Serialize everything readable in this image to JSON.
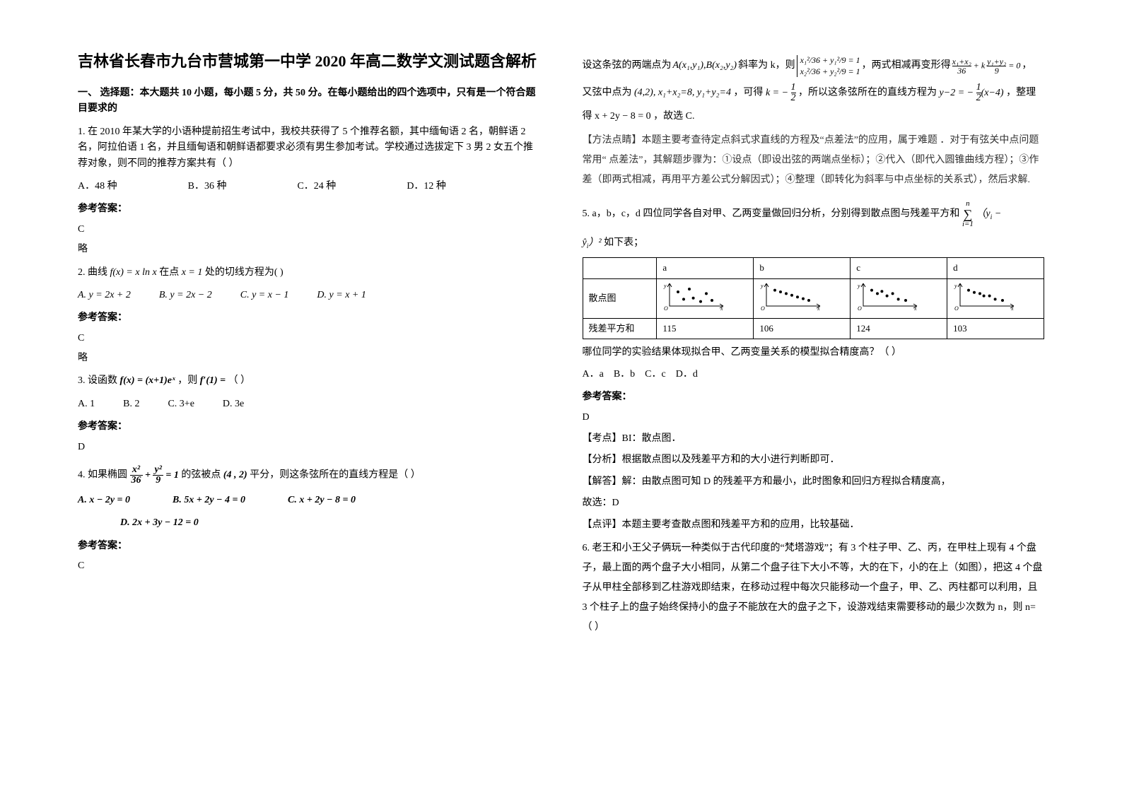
{
  "title": "吉林省长春市九台市营城第一中学 2020 年高二数学文测试题含解析",
  "section_header": "一、 选择题：本大题共 10 小题，每小题 5 分，共 50 分。在每小题给出的四个选项中，只有是一个符合题目要求的",
  "q1": {
    "text": "1. 在 2010 年某大学的小语种提前招生考试中，我校共获得了 5 个推荐名额，其中缅甸语 2 名，朝鲜语 2 名，阿拉伯语 1 名，并且缅甸语和朝鲜语都要求必须有男生参加考试。学校通过选拔定下 3 男 2 女五个推荐对象，则不同的推荐方案共有（    ）",
    "opts": {
      "A": "A．48 种",
      "B": "B．36 种",
      "C": "C．24 种",
      "D": "D．12 种"
    },
    "answer_label": "参考答案：",
    "answer": "C",
    "note": "略"
  },
  "q2": {
    "text_prefix": "2. 曲线",
    "fx": "f(x) = x ln x",
    "text_mid1": "在点",
    "pt": "x = 1",
    "text_suffix": "处的切线方程为(   )",
    "opts": {
      "A": "A.  y = 2x + 2",
      "B": "B.  y = 2x − 2",
      "C": "C.  y = x − 1",
      "D": "D.  y = x + 1"
    },
    "answer_label": "参考答案：",
    "answer": "C",
    "note": "略"
  },
  "q3": {
    "text_prefix": "3. 设函数",
    "fx": "f(x) = (x+1)eˣ",
    "mid": "，则",
    "fp": "f′(1) =",
    "tail": "（       ）",
    "opts": {
      "A": "A. 1",
      "B": "B. 2",
      "C": "C. 3+e",
      "D": "D. 3e"
    },
    "answer_label": "参考答案：",
    "answer": "D"
  },
  "q4": {
    "text_prefix": "4. 如果椭圆",
    "ellipse": "x²/36 + y²/9 = 1",
    "mid": "的弦被点",
    "pt": "(4 , 2)",
    "tail": "平分，则这条弦所在的直线方程是（       ）",
    "opts": {
      "A": "A.  x − 2y = 0",
      "B": "B.  5x + 2y − 4 = 0",
      "C": "C.  x + 2y − 8 = 0",
      "D": "D.  2x + 3y − 12 = 0"
    },
    "answer_label": "参考答案：",
    "answer": "C"
  },
  "q4_explain": {
    "p1_prefix": "设这条弦的两端点为",
    "AB": "A(x₁,y₁),B(x₂,y₂)",
    "p1_mid": "斜率为 k，则",
    "system": "x₁²/36 + y₁²/9 = 1 ； x₂²/36 + y₂²/9 = 1",
    "p1_tail": "，两式相减再变形得",
    "res1": "(x₁+x₂)/36 + k·(y₁+y₂)/9 = 0",
    "p2_prefix": "又弦中点为",
    "mid": "(4,2), x₁+x₂=8, y₁+y₂=4",
    "p2_mid1": "，可得",
    "k": "k = −1/2",
    "p2_mid2": "，所以这条弦所在的直线方程为",
    "line": "y−2 = −½(x−4)",
    "p2_tail": "，整理",
    "p3": "得 x + 2y − 8 = 0 ，故选 C.",
    "method": "【方法点睛】本题主要考查待定点斜式求直线的方程及“点差法”的应用，属于难题 ．对于有弦关中点问题常用“ 点差法”，其解题步骤为：①设点（即设出弦的两端点坐标）；②代入（即代入圆锥曲线方程）；③作差（即两式相减，再用平方差公式分解因式）；④整理（即转化为斜率与中点坐标的关系式），然后求解."
  },
  "q5": {
    "text": "5. a，b，c，d 四位同学各自对甲、乙两变量做回归分析，分别得到散点图与残差平方和",
    "sum": "∑ (yᵢ − ŷᵢ)²",
    "tail": "如下表；",
    "table": {
      "cols": [
        "",
        "a",
        "b",
        "c",
        "d"
      ],
      "row_scatter_label": "散点图",
      "row_rss": {
        "label": "残差平方和",
        "a": "115",
        "b": "106",
        "c": "124",
        "d": "103"
      }
    },
    "scatter_spec": {
      "axis_color": "#000000",
      "point_color": "#000000",
      "point_radius": 2,
      "width": 90,
      "height": 40,
      "ylabel": "y",
      "xlabel": "x",
      "a_points": [
        [
          15,
          25
        ],
        [
          25,
          12
        ],
        [
          35,
          30
        ],
        [
          42,
          14
        ],
        [
          55,
          8
        ],
        [
          65,
          22
        ],
        [
          75,
          10
        ]
      ],
      "b_points": [
        [
          15,
          28
        ],
        [
          25,
          25
        ],
        [
          35,
          22
        ],
        [
          45,
          19
        ],
        [
          55,
          16
        ],
        [
          65,
          13
        ],
        [
          75,
          10
        ]
      ],
      "c_points": [
        [
          15,
          28
        ],
        [
          25,
          22
        ],
        [
          33,
          26
        ],
        [
          42,
          18
        ],
        [
          52,
          22
        ],
        [
          62,
          12
        ],
        [
          75,
          10
        ]
      ],
      "d_points": [
        [
          15,
          28
        ],
        [
          25,
          24
        ],
        [
          35,
          22
        ],
        [
          42,
          18
        ],
        [
          52,
          18
        ],
        [
          62,
          12
        ],
        [
          75,
          10
        ]
      ]
    },
    "q_text": "哪位同学的实验结果体现拟合甲、乙两变量关系的模型拟合精度高？（     ）",
    "opts": {
      "A": "A．a",
      "B": "B．b",
      "C": "C．c",
      "D": "D．d"
    },
    "answer_label": "参考答案：",
    "answer": "D",
    "kaodian": "【考点】BI：散点图．",
    "fenxi": "【分析】根据散点图以及残差平方和的大小进行判断即可．",
    "jieda": "【解答】解：由散点图可知 D 的残差平方和最小，此时图象和回归方程拟合精度高，",
    "guxuan": "故选：D",
    "dianping": "【点评】本题主要考查散点图和残差平方和的应用，比较基础．"
  },
  "q6": {
    "text": "6. 老王和小王父子俩玩一种类似于古代印度的“梵塔游戏”；有 3 个柱子甲、乙、丙，在甲柱上现有 4 个盘子，最上面的两个盘子大小相同，从第二个盘子往下大小不等，大的在下，小的在上（如图），把这 4 个盘子从甲柱全部移到乙柱游戏即结束，在移动过程中每次只能移动一个盘子，甲、乙、丙柱都可以利用，且 3 个柱子上的盘子始终保持小的盘子不能放在大的盘子之下，设游戏结束需要移动的最少次数为 n，则 n=（    ）"
  },
  "style": {
    "title_fontsize": 22,
    "body_fontsize": 14,
    "table_border_color": "#000000",
    "background_color": "#ffffff",
    "text_color": "#000000"
  }
}
